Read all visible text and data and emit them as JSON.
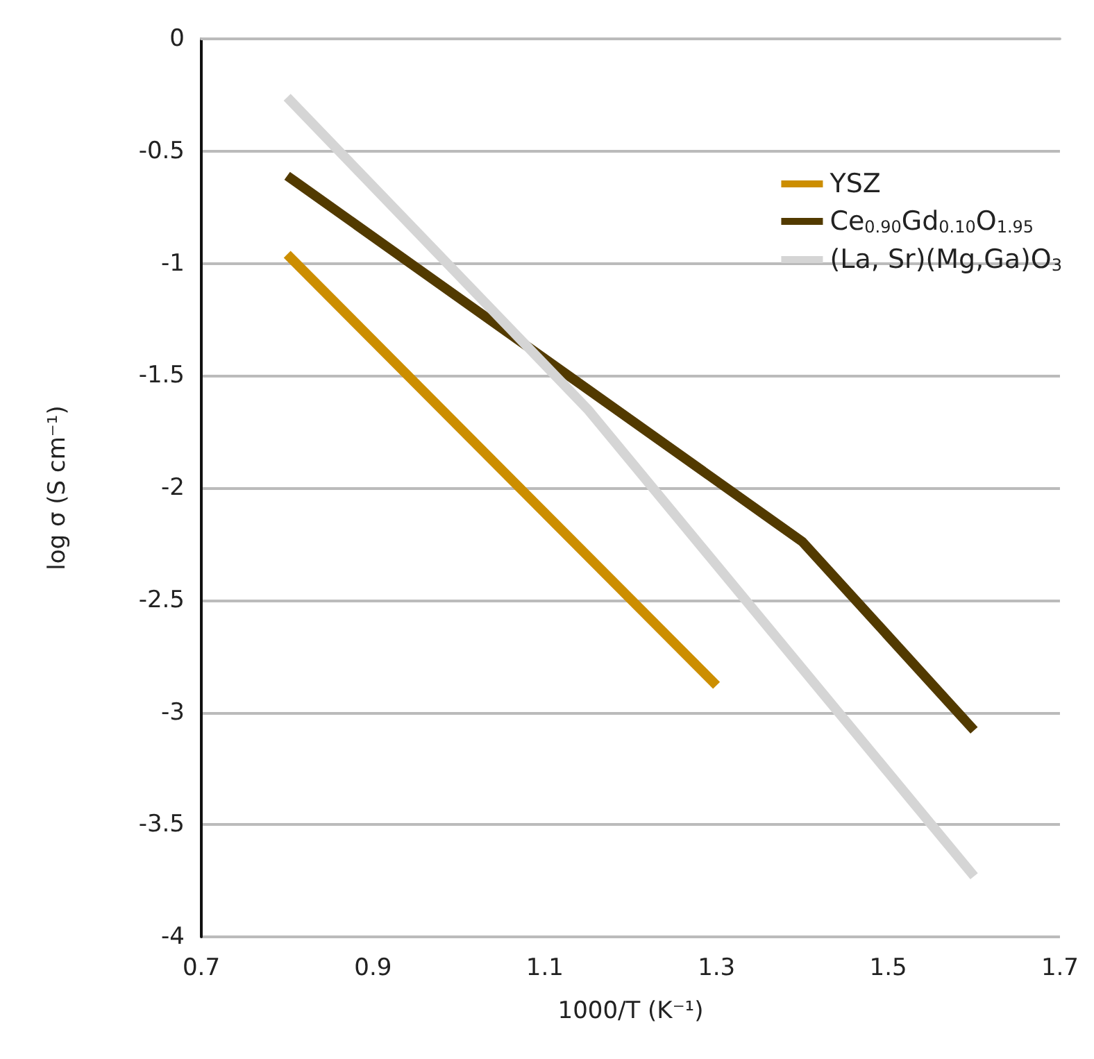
{
  "chart_data": {
    "type": "line",
    "xlabel": "1000/T (K⁻¹)",
    "ylabel": "log σ (S cm⁻¹)",
    "xlim": [
      0.7,
      1.7
    ],
    "xticks": [
      0.7,
      0.9,
      1.1,
      1.3,
      1.5,
      1.7
    ],
    "ylim": [
      -4,
      0
    ],
    "yticks": [
      -4,
      -3.5,
      -3,
      -2.5,
      -2,
      -1.5,
      -1,
      -0.5,
      0
    ],
    "grid": "y",
    "legend": "top right",
    "marker": "none",
    "line_style": "solid",
    "series": [
      {
        "name": "YSZ",
        "color": "#cc8e00",
        "x": [
          0.8,
          1.3
        ],
        "values": [
          -0.96,
          -2.88
        ]
      },
      {
        "name": "Ce$_{0.90}$Gd$_{0.10}$O$_{1.95}$",
        "color": "#523a00",
        "x": [
          0.8,
          1.4,
          1.6
        ],
        "values": [
          -0.61,
          -2.24,
          -3.08
        ]
      },
      {
        "name": "(La, Sr)(Mg,Ga)O$_{3}$",
        "color": "#d5d5d5",
        "x": [
          0.8,
          1.15,
          1.6
        ],
        "values": [
          -0.26,
          -1.65,
          -3.73
        ]
      }
    ]
  }
}
